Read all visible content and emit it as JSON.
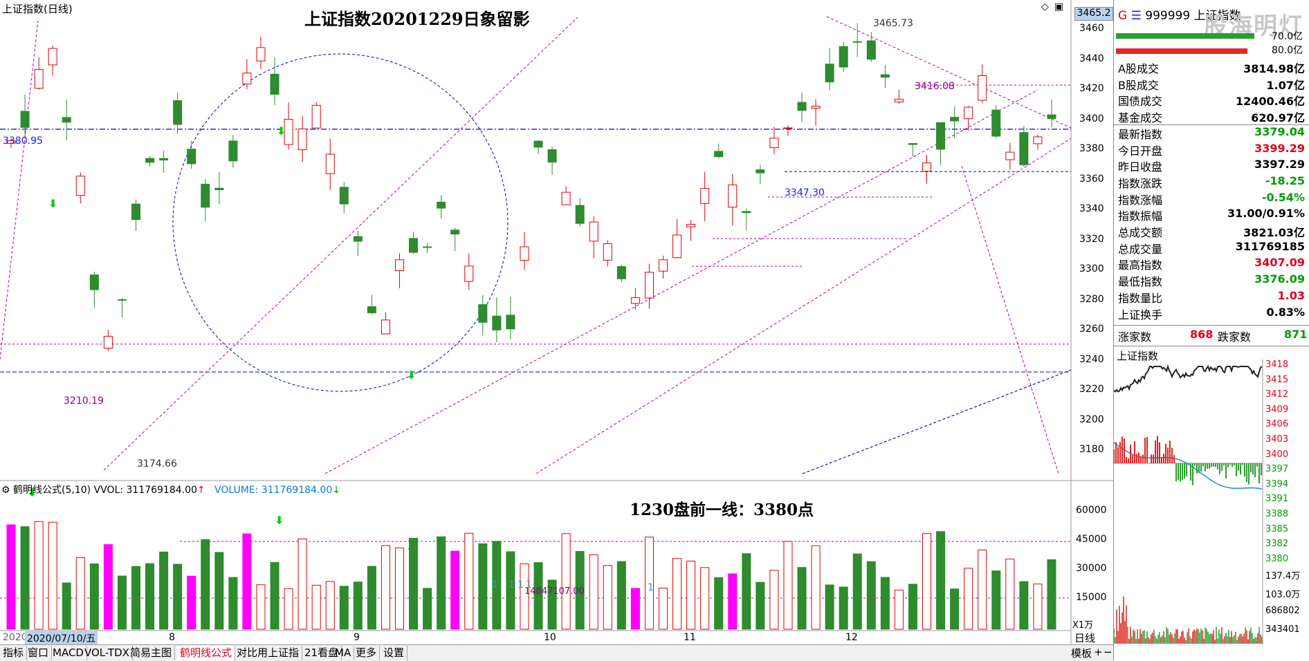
{
  "title": "上证指数(日线)",
  "annotation_title": "上证指数20201229日象留影",
  "annotation_sub": "1230盘前一线：3380点",
  "price_badge": "3465.2",
  "level_labels": {
    "high": "3465.73",
    "mid_high": "3416.08",
    "left_level": "3380.95",
    "support": "3347.30",
    "left_low": "3210.19",
    "low": "3174.66",
    "volume_peak": "14847107.00"
  },
  "price_axis": [
    "3460",
    "3440",
    "3420",
    "3400",
    "3380",
    "3360",
    "3340",
    "3320",
    "3300",
    "3280",
    "3260",
    "3240",
    "3220",
    "3200",
    "3180"
  ],
  "volume_axis": [
    "60000",
    "45000",
    "30000",
    "15000"
  ],
  "volume_unit": "X1万",
  "month_labels": [
    "8",
    "9",
    "10",
    "11",
    "12"
  ],
  "date_label": "2020/07/10/五",
  "year_prefix": "2020",
  "indicator": {
    "name": "鹤明线公式(5,10)",
    "vvol": "VVOL: 311769184.00",
    "vvol_arrow": "↑",
    "volume": "VOLUME: 311769184.00",
    "volume_arrow": "↓"
  },
  "small_ones": [
    "1",
    "1",
    "1",
    "1",
    "1"
  ],
  "right_panel": {
    "code_prefix": "G",
    "code": "999999 上证指数",
    "watermark": "股海明灯",
    "pct_a": "70.0亿",
    "pct_b": "80.0亿",
    "rows": [
      {
        "label": "A股成交",
        "value": "3814.98亿",
        "color": "black"
      },
      {
        "label": "B股成交",
        "value": "1.07亿",
        "color": "black"
      },
      {
        "label": "国债成交",
        "value": "12400.46亿",
        "color": "black"
      },
      {
        "label": "基金成交",
        "value": "620.97亿",
        "color": "black"
      },
      {
        "label": "最新指数",
        "value": "3379.04",
        "color": "green"
      },
      {
        "label": "今日开盘",
        "value": "3399.29",
        "color": "red"
      },
      {
        "label": "昨日收盘",
        "value": "3397.29",
        "color": "black"
      },
      {
        "label": "指数涨跌",
        "value": "-18.25",
        "color": "green"
      },
      {
        "label": "指数涨幅",
        "value": "-0.54%",
        "color": "green"
      },
      {
        "label": "指数振幅",
        "value": "31.00/0.91%",
        "color": "black"
      },
      {
        "label": "总成交额",
        "value": "3821.03亿",
        "color": "black"
      },
      {
        "label": "总成交量",
        "value": "311769185",
        "color": "black"
      },
      {
        "label": "最高指数",
        "value": "3407.09",
        "color": "red"
      },
      {
        "label": "最低指数",
        "value": "3376.09",
        "color": "green"
      },
      {
        "label": "指数量比",
        "value": "1.03",
        "color": "red"
      },
      {
        "label": "上证换手",
        "value": "0.83%",
        "color": "black"
      }
    ],
    "up_label": "涨家数",
    "up_count": "868",
    "down_label": "跌家数",
    "down_count": "871",
    "mini_title": "上证指数",
    "mini_axis": [
      "3418",
      "3415",
      "3412",
      "3409",
      "3406",
      "3403",
      "3400",
      "3397",
      "3394",
      "3391",
      "3388",
      "3385",
      "3382",
      "3380"
    ],
    "mini_vol_axis": [
      "137.4万",
      "103.0万",
      "686802",
      "343401"
    ],
    "daily_label": "日线"
  },
  "tabs": [
    "指标",
    "窗口",
    "MACD",
    "VOL-TDX",
    "简易主图",
    "鹤明线公式",
    "对比用上证指",
    "21看盘",
    "MA",
    "更多",
    "设置"
  ],
  "right_tab": "模板",
  "colors": {
    "up": "#e60000",
    "down": "#2e8b2e",
    "bg": "#ffffff",
    "magenta": "#ff00ff",
    "dashBlue": "#0000cc",
    "dashMag": "#b000b0"
  }
}
